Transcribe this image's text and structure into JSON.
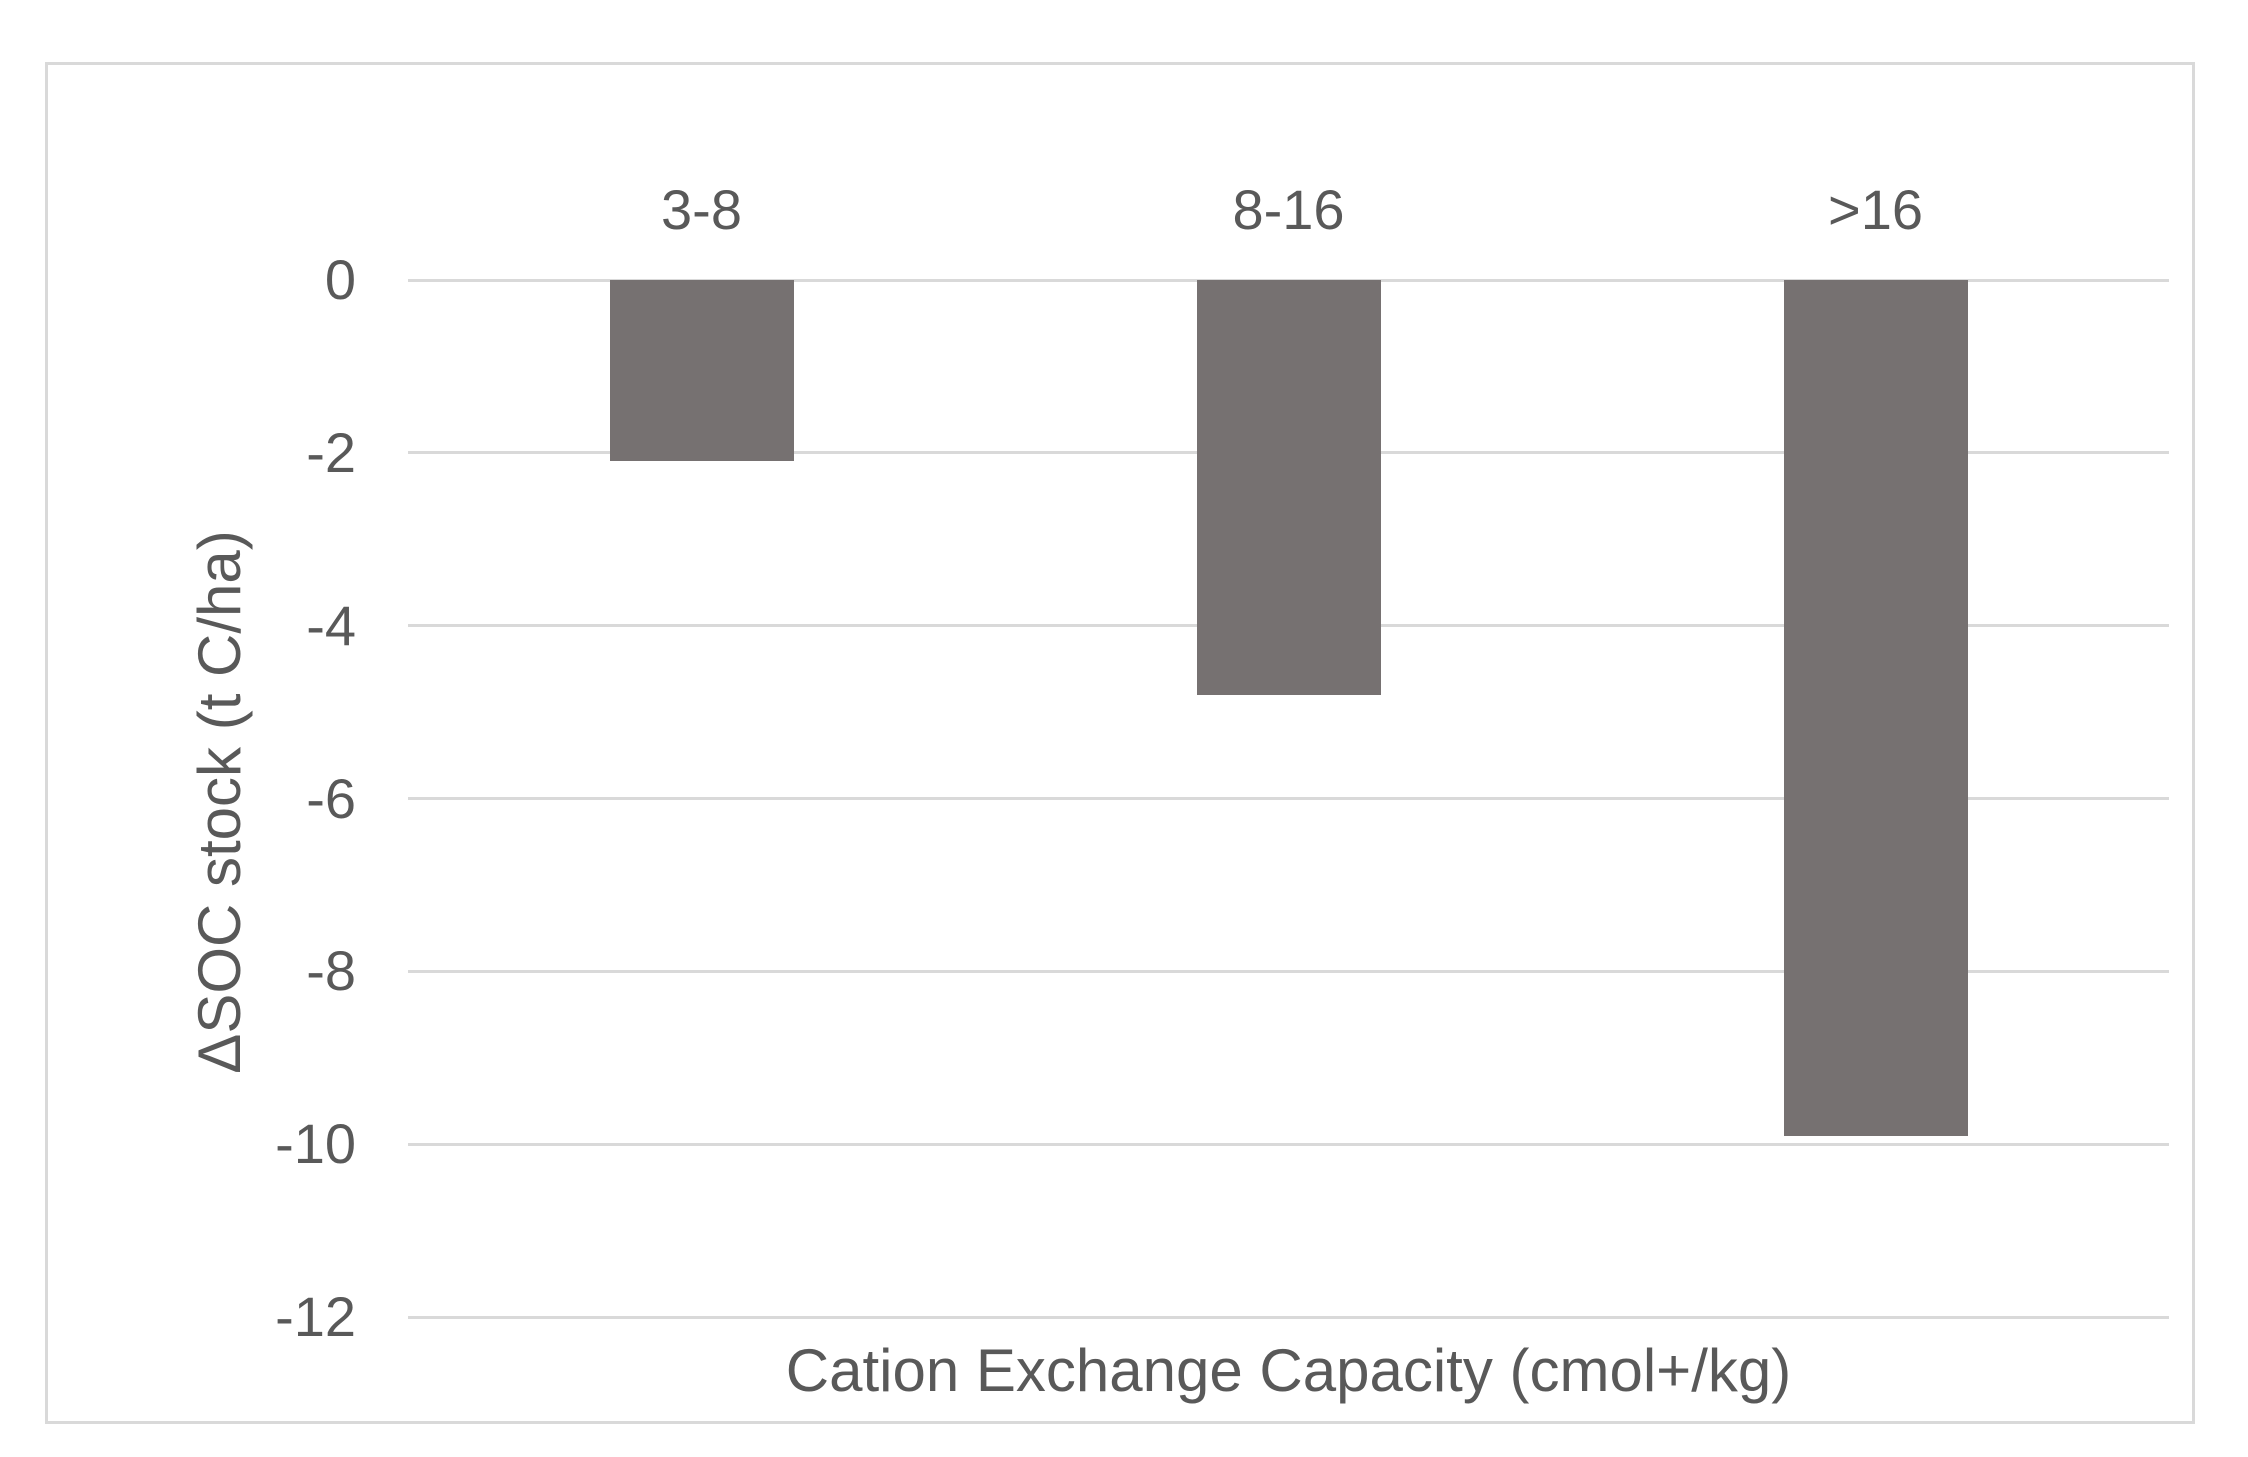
{
  "figure": {
    "background": "#ffffff",
    "border_color": "#d9d9d9"
  },
  "chart_data": {
    "type": "bar",
    "categories": [
      "3-8",
      "8-16",
      ">16"
    ],
    "values": [
      -2.1,
      -4.8,
      -9.9
    ],
    "title": "",
    "xlabel": "Cation Exchange Capacity (cmol+/kg)",
    "ylabel": "ΔSOC stock (t C/ha)",
    "ylim": [
      -12,
      0
    ],
    "yticks": [
      0,
      -2,
      -4,
      -6,
      -8,
      -10,
      -12
    ],
    "grid": "horizontal",
    "legend": "none",
    "category_label_position": "top",
    "bar_color": "#767171",
    "gridline_color": "#d9d9d9",
    "tick_color": "#595959",
    "label_color": "#595959"
  }
}
